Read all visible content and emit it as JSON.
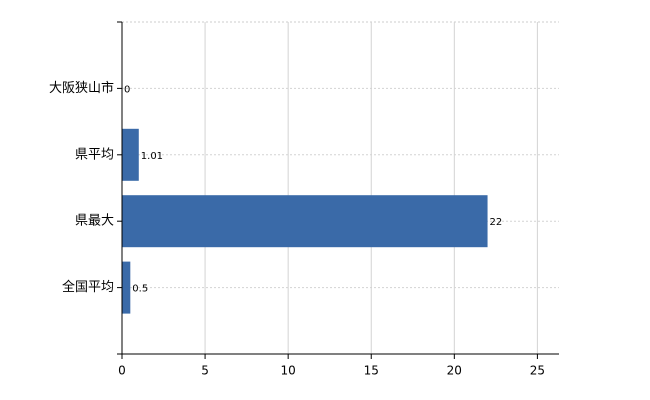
{
  "chart_data": {
    "type": "bar",
    "orientation": "horizontal",
    "categories": [
      "大阪狭山市",
      "県平均",
      "県最大",
      "全国平均"
    ],
    "values": [
      0,
      1.01,
      22,
      0.5
    ],
    "color": "#3a6aa8",
    "xlim": [
      0,
      26.3
    ],
    "xticks": [
      0,
      5,
      10,
      15,
      20,
      25
    ],
    "grid": true
  }
}
